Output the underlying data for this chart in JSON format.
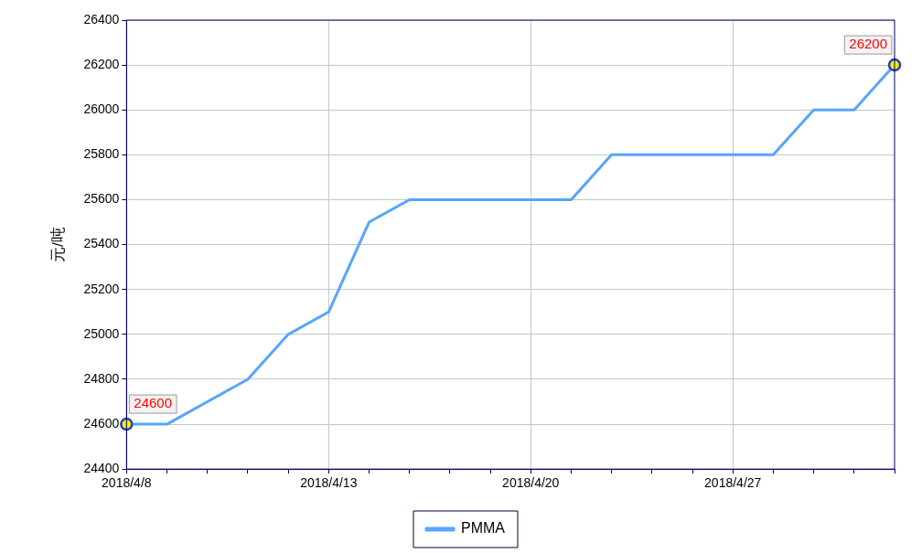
{
  "chart_data": {
    "type": "line",
    "ylabel": "元/吨",
    "categories": [
      "2018/4/8",
      null,
      null,
      null,
      null,
      "2018/4/13",
      null,
      null,
      null,
      null,
      "2018/4/20",
      null,
      null,
      null,
      null,
      "2018/4/27",
      null,
      null,
      null,
      null
    ],
    "series": [
      {
        "name": "PMMA",
        "color": "#55a5ff",
        "values": [
          24600,
          24600,
          24700,
          24800,
          25000,
          25100,
          25500,
          25600,
          25600,
          25600,
          25600,
          25600,
          25800,
          25800,
          25800,
          25800,
          25800,
          26000,
          26000,
          26200
        ],
        "value_labels": [
          "24600",
          null,
          null,
          null,
          null,
          null,
          null,
          null,
          null,
          null,
          null,
          null,
          null,
          null,
          null,
          null,
          null,
          null,
          null,
          "26200"
        ]
      }
    ],
    "ylim": [
      24400,
      26400
    ],
    "yticks": [
      24400,
      24600,
      24800,
      25000,
      25200,
      25400,
      25600,
      25800,
      26000,
      26200,
      26400
    ],
    "grid": true,
    "legend": "bottom",
    "line_style": "solid"
  }
}
